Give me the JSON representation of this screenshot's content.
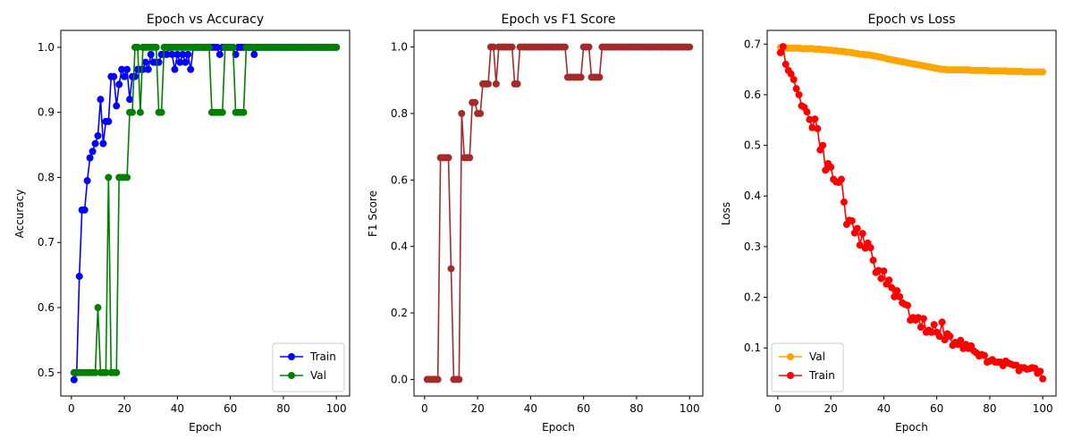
{
  "chart_data": [
    {
      "type": "line",
      "title": "Epoch vs Accuracy",
      "xlabel": "Epoch",
      "ylabel": "Accuracy",
      "xlim": [
        -4,
        105
      ],
      "ylim": [
        0.464,
        1.026
      ],
      "xticks": [
        0,
        20,
        40,
        60,
        80,
        100
      ],
      "yticks": [
        0.5,
        0.6,
        0.7,
        0.8,
        0.9,
        1.0
      ],
      "xtick_labels": [
        "0",
        "20",
        "40",
        "60",
        "80",
        "100"
      ],
      "ytick_labels": [
        "0.5",
        "0.6",
        "0.7",
        "0.8",
        "0.9",
        "1.0"
      ],
      "legend_position": "bottom-right",
      "series": [
        {
          "name": "Train",
          "color": "#0000ff",
          "x": [
            1,
            2,
            3,
            4,
            5,
            6,
            7,
            8,
            9,
            10,
            11,
            12,
            13,
            14,
            15,
            16,
            17,
            18,
            19,
            20,
            21,
            22,
            23,
            24,
            25,
            26,
            27,
            28,
            29,
            30,
            31,
            32,
            33,
            34,
            35,
            36,
            37,
            38,
            39,
            40,
            41,
            42,
            43,
            44,
            45,
            46,
            47,
            48,
            49,
            50,
            51,
            52,
            53,
            54,
            55,
            56,
            57,
            58,
            59,
            60,
            61,
            62,
            63,
            64,
            65,
            66,
            67,
            68,
            69,
            70,
            71,
            72,
            73,
            74,
            75,
            76,
            77,
            78,
            79,
            80,
            81,
            82,
            83,
            84,
            85,
            86,
            87,
            88,
            89,
            90,
            91,
            92,
            93,
            94,
            95,
            96,
            97,
            98,
            99,
            100
          ],
          "y": [
            0.489,
            0.5,
            0.648,
            0.75,
            0.75,
            0.795,
            0.83,
            0.84,
            0.852,
            0.864,
            0.92,
            0.852,
            0.886,
            0.886,
            0.955,
            0.955,
            0.91,
            0.943,
            0.966,
            0.955,
            0.966,
            0.92,
            0.955,
            0.955,
            0.966,
            0.966,
            0.966,
            0.977,
            0.966,
            0.989,
            0.977,
            0.977,
            0.977,
            0.989,
            0.989,
            0.989,
            1.0,
            0.989,
            0.966,
            0.989,
            0.977,
            0.989,
            0.977,
            0.989,
            0.966,
            1.0,
            1.0,
            1.0,
            1.0,
            1.0,
            1.0,
            1.0,
            1.0,
            1.0,
            1.0,
            0.989,
            1.0,
            1.0,
            1.0,
            1.0,
            1.0,
            0.989,
            1.0,
            1.0,
            1.0,
            1.0,
            1.0,
            1.0,
            0.989,
            1.0,
            1.0,
            1.0,
            1.0,
            1.0,
            1.0,
            1.0,
            1.0,
            1.0,
            1.0,
            1.0,
            1.0,
            1.0,
            1.0,
            1.0,
            1.0,
            1.0,
            1.0,
            1.0,
            1.0,
            1.0,
            1.0,
            1.0,
            1.0,
            1.0,
            1.0,
            1.0,
            1.0,
            1.0,
            1.0,
            1.0
          ]
        },
        {
          "name": "Val",
          "color": "#008000",
          "x": [
            1,
            2,
            3,
            4,
            5,
            6,
            7,
            8,
            9,
            10,
            11,
            12,
            13,
            14,
            15,
            16,
            17,
            18,
            19,
            20,
            21,
            22,
            23,
            24,
            25,
            26,
            27,
            28,
            29,
            30,
            31,
            32,
            33,
            34,
            35,
            36,
            37,
            38,
            39,
            40,
            41,
            42,
            43,
            44,
            45,
            46,
            47,
            48,
            49,
            50,
            51,
            52,
            53,
            54,
            55,
            56,
            57,
            58,
            59,
            60,
            61,
            62,
            63,
            64,
            65,
            66,
            67,
            68,
            69,
            70,
            71,
            72,
            73,
            74,
            75,
            76,
            77,
            78,
            79,
            80,
            81,
            82,
            83,
            84,
            85,
            86,
            87,
            88,
            89,
            90,
            91,
            92,
            93,
            94,
            95,
            96,
            97,
            98,
            99,
            100
          ],
          "y": [
            0.5,
            0.5,
            0.5,
            0.5,
            0.5,
            0.5,
            0.5,
            0.5,
            0.5,
            0.6,
            0.5,
            0.5,
            0.5,
            0.8,
            0.5,
            0.5,
            0.5,
            0.8,
            0.8,
            0.8,
            0.8,
            0.9,
            0.9,
            1.0,
            1.0,
            0.9,
            1.0,
            1.0,
            1.0,
            1.0,
            1.0,
            1.0,
            0.9,
            0.9,
            1.0,
            1.0,
            1.0,
            1.0,
            1.0,
            1.0,
            1.0,
            1.0,
            1.0,
            1.0,
            1.0,
            1.0,
            1.0,
            1.0,
            1.0,
            1.0,
            1.0,
            1.0,
            0.9,
            0.9,
            0.9,
            0.9,
            0.9,
            1.0,
            1.0,
            1.0,
            1.0,
            0.9,
            0.9,
            0.9,
            0.9,
            1.0,
            1.0,
            1.0,
            1.0,
            1.0,
            1.0,
            1.0,
            1.0,
            1.0,
            1.0,
            1.0,
            1.0,
            1.0,
            1.0,
            1.0,
            1.0,
            1.0,
            1.0,
            1.0,
            1.0,
            1.0,
            1.0,
            1.0,
            1.0,
            1.0,
            1.0,
            1.0,
            1.0,
            1.0,
            1.0,
            1.0,
            1.0,
            1.0,
            1.0,
            1.0
          ]
        }
      ]
    },
    {
      "type": "line",
      "title": "Epoch vs F1 Score",
      "xlabel": "Epoch",
      "ylabel": "F1 Score",
      "xlim": [
        -4,
        105
      ],
      "ylim": [
        -0.05,
        1.05
      ],
      "xticks": [
        0,
        20,
        40,
        60,
        80,
        100
      ],
      "yticks": [
        0.0,
        0.2,
        0.4,
        0.6,
        0.8,
        1.0
      ],
      "xtick_labels": [
        "0",
        "20",
        "40",
        "60",
        "80",
        "100"
      ],
      "ytick_labels": [
        "0.0",
        "0.2",
        "0.4",
        "0.6",
        "0.8",
        "1.0"
      ],
      "legend_position": "none",
      "series": [
        {
          "color": "#a52a2a",
          "x": [
            1,
            2,
            3,
            4,
            5,
            6,
            7,
            8,
            9,
            10,
            11,
            12,
            13,
            14,
            15,
            16,
            17,
            18,
            19,
            20,
            21,
            22,
            23,
            24,
            25,
            26,
            27,
            28,
            29,
            30,
            31,
            32,
            33,
            34,
            35,
            36,
            37,
            38,
            39,
            40,
            41,
            42,
            43,
            44,
            45,
            46,
            47,
            48,
            49,
            50,
            51,
            52,
            53,
            54,
            55,
            56,
            57,
            58,
            59,
            60,
            61,
            62,
            63,
            64,
            65,
            66,
            67,
            68,
            69,
            70,
            71,
            72,
            73,
            74,
            75,
            76,
            77,
            78,
            79,
            80,
            81,
            82,
            83,
            84,
            85,
            86,
            87,
            88,
            89,
            90,
            91,
            92,
            93,
            94,
            95,
            96,
            97,
            98,
            99,
            100
          ],
          "y": [
            0,
            0,
            0,
            0,
            0,
            0.667,
            0.667,
            0.667,
            0.667,
            0.333,
            0,
            0,
            0,
            0.8,
            0.667,
            0.667,
            0.667,
            0.833,
            0.833,
            0.8,
            0.8,
            0.889,
            0.889,
            0.889,
            1.0,
            1.0,
            0.889,
            1.0,
            1.0,
            1.0,
            1.0,
            1.0,
            1.0,
            0.889,
            0.889,
            1.0,
            1.0,
            1.0,
            1.0,
            1.0,
            1.0,
            1.0,
            1.0,
            1.0,
            1.0,
            1.0,
            1.0,
            1.0,
            1.0,
            1.0,
            1.0,
            1.0,
            1.0,
            0.909,
            0.909,
            0.909,
            0.909,
            0.909,
            0.909,
            1.0,
            1.0,
            1.0,
            0.909,
            0.909,
            0.909,
            0.909,
            1.0,
            1.0,
            1.0,
            1.0,
            1.0,
            1.0,
            1.0,
            1.0,
            1.0,
            1.0,
            1.0,
            1.0,
            1.0,
            1.0,
            1.0,
            1.0,
            1.0,
            1.0,
            1.0,
            1.0,
            1.0,
            1.0,
            1.0,
            1.0,
            1.0,
            1.0,
            1.0,
            1.0,
            1.0,
            1.0,
            1.0,
            1.0,
            1.0,
            1.0
          ]
        }
      ]
    },
    {
      "type": "line",
      "title": "Epoch vs Loss",
      "xlabel": "Epoch",
      "ylabel": "Loss",
      "xlim": [
        -4,
        105
      ],
      "ylim": [
        0.005,
        0.727
      ],
      "xticks": [
        0,
        20,
        40,
        60,
        80,
        100
      ],
      "yticks": [
        0.1,
        0.2,
        0.3,
        0.4,
        0.5,
        0.6,
        0.7
      ],
      "xtick_labels": [
        "0",
        "20",
        "40",
        "60",
        "80",
        "100"
      ],
      "ytick_labels": [
        "0.1",
        "0.2",
        "0.3",
        "0.4",
        "0.5",
        "0.6",
        "0.7"
      ],
      "legend_position": "bottom-left",
      "series": [
        {
          "name": "Val",
          "color": "#ffa500",
          "x": [
            1,
            2,
            3,
            4,
            5,
            6,
            7,
            8,
            9,
            10,
            11,
            12,
            13,
            14,
            15,
            16,
            17,
            18,
            19,
            20,
            21,
            22,
            23,
            24,
            25,
            26,
            27,
            28,
            29,
            30,
            31,
            32,
            33,
            34,
            35,
            36,
            37,
            38,
            39,
            40,
            41,
            42,
            43,
            44,
            45,
            46,
            47,
            48,
            49,
            50,
            51,
            52,
            53,
            54,
            55,
            56,
            57,
            58,
            59,
            60,
            61,
            62,
            63,
            64,
            65,
            66,
            67,
            68,
            69,
            70,
            71,
            72,
            73,
            74,
            75,
            76,
            77,
            78,
            79,
            80,
            81,
            82,
            83,
            84,
            85,
            86,
            87,
            88,
            89,
            90,
            91,
            92,
            93,
            94,
            95,
            96,
            97,
            98,
            99,
            100
          ],
          "y": [
            0.693,
            0.692,
            0.692,
            0.692,
            0.692,
            0.692,
            0.692,
            0.692,
            0.691,
            0.691,
            0.691,
            0.691,
            0.691,
            0.69,
            0.69,
            0.69,
            0.689,
            0.689,
            0.688,
            0.688,
            0.687,
            0.687,
            0.686,
            0.686,
            0.685,
            0.684,
            0.684,
            0.683,
            0.682,
            0.681,
            0.68,
            0.68,
            0.679,
            0.679,
            0.678,
            0.677,
            0.676,
            0.675,
            0.674,
            0.673,
            0.671,
            0.67,
            0.669,
            0.668,
            0.667,
            0.666,
            0.665,
            0.664,
            0.663,
            0.662,
            0.661,
            0.66,
            0.659,
            0.658,
            0.657,
            0.656,
            0.655,
            0.654,
            0.653,
            0.652,
            0.651,
            0.65,
            0.65,
            0.649,
            0.649,
            0.649,
            0.649,
            0.649,
            0.649,
            0.649,
            0.649,
            0.649,
            0.648,
            0.648,
            0.648,
            0.648,
            0.648,
            0.648,
            0.648,
            0.647,
            0.647,
            0.647,
            0.647,
            0.647,
            0.647,
            0.647,
            0.646,
            0.646,
            0.646,
            0.646,
            0.646,
            0.646,
            0.645,
            0.645,
            0.645,
            0.645,
            0.645,
            0.645,
            0.645,
            0.645
          ]
        },
        {
          "name": "Train",
          "color": "#ff0000",
          "x": [
            1,
            2,
            3,
            4,
            5,
            6,
            7,
            8,
            9,
            10,
            11,
            12,
            13,
            14,
            15,
            16,
            17,
            18,
            19,
            20,
            21,
            22,
            23,
            24,
            25,
            26,
            27,
            28,
            29,
            30,
            31,
            32,
            33,
            34,
            35,
            36,
            37,
            38,
            39,
            40,
            41,
            42,
            43,
            44,
            45,
            46,
            47,
            48,
            49,
            50,
            51,
            52,
            53,
            54,
            55,
            56,
            57,
            58,
            59,
            60,
            61,
            62,
            63,
            64,
            65,
            66,
            67,
            68,
            69,
            70,
            71,
            72,
            73,
            74,
            75,
            76,
            77,
            78,
            79,
            80,
            81,
            82,
            83,
            84,
            85,
            86,
            87,
            88,
            89,
            90,
            91,
            92,
            93,
            94,
            95,
            96,
            97,
            98,
            99,
            100
          ],
          "y": [
            0.683,
            0.695,
            0.66,
            0.648,
            0.641,
            0.63,
            0.612,
            0.6,
            0.578,
            0.575,
            0.566,
            0.551,
            0.535,
            0.552,
            0.533,
            0.491,
            0.5,
            0.451,
            0.464,
            0.457,
            0.433,
            0.428,
            0.427,
            0.433,
            0.388,
            0.344,
            0.352,
            0.351,
            0.327,
            0.336,
            0.303,
            0.326,
            0.297,
            0.307,
            0.298,
            0.273,
            0.249,
            0.253,
            0.237,
            0.252,
            0.226,
            0.234,
            0.219,
            0.201,
            0.213,
            0.201,
            0.189,
            0.186,
            0.184,
            0.155,
            0.16,
            0.155,
            0.16,
            0.141,
            0.158,
            0.131,
            0.135,
            0.131,
            0.146,
            0.131,
            0.123,
            0.151,
            0.116,
            0.128,
            0.123,
            0.105,
            0.111,
            0.107,
            0.115,
            0.099,
            0.107,
            0.099,
            0.104,
            0.094,
            0.09,
            0.084,
            0.087,
            0.085,
            0.072,
            0.074,
            0.077,
            0.072,
            0.072,
            0.072,
            0.065,
            0.074,
            0.07,
            0.068,
            0.066,
            0.066,
            0.055,
            0.061,
            0.061,
            0.058,
            0.059,
            0.061,
            0.06,
            0.05,
            0.054,
            0.039
          ]
        }
      ]
    }
  ]
}
